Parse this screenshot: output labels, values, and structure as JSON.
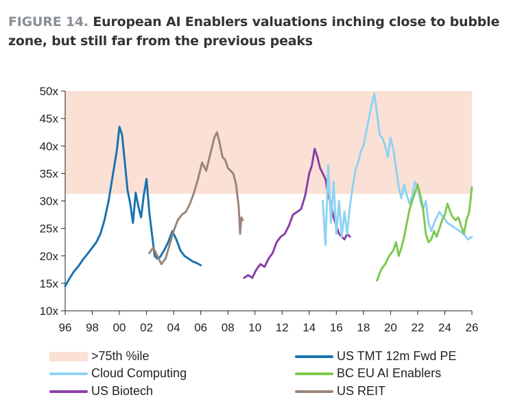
{
  "title": {
    "figure_label": "FIGURE 14.",
    "text": "European AI Enablers valuations inching close to bubble zone, but still far from the previous peaks"
  },
  "colors": {
    "zone": "#fbe0d6",
    "us_tmt": "#1a73b0",
    "cloud": "#8fd3f4",
    "bc_eu_ai": "#7ec850",
    "biotech": "#8a3fa8",
    "reit": "#9b857a",
    "axis": "#222222"
  },
  "chart_data": {
    "type": "line",
    "title": "European AI Enablers valuations inching close to bubble zone, but still far from the previous peaks",
    "xlabel": "",
    "ylabel": "",
    "xlim": [
      1996,
      2026
    ],
    "ylim": [
      10,
      50
    ],
    "x_ticks": [
      1996,
      1998,
      2000,
      2002,
      2004,
      2006,
      2008,
      2010,
      2012,
      2014,
      2016,
      2018,
      2020,
      2022,
      2024,
      2026
    ],
    "x_tick_labels": [
      "96",
      "98",
      "00",
      "02",
      "04",
      "06",
      "08",
      "10",
      "12",
      "14",
      "16",
      "18",
      "20",
      "22",
      "24",
      "26"
    ],
    "y_ticks": [
      10,
      15,
      20,
      25,
      30,
      35,
      40,
      45,
      50
    ],
    "y_tick_labels": [
      "10x",
      "15x",
      "20x",
      "25x",
      "30x",
      "35x",
      "40x",
      "45x",
      "50x"
    ],
    "zone": {
      "name": ">75th %ile",
      "y_from": 31.3,
      "y_to": 50
    },
    "series": [
      {
        "name": "US TMT 12m Fwd PE",
        "color_key": "us_tmt",
        "x": [
          1996.0,
          1996.3,
          1996.6,
          1997.0,
          1997.3,
          1997.6,
          1998.0,
          1998.3,
          1998.6,
          1998.9,
          1999.2,
          1999.5,
          1999.8,
          2000.0,
          2000.2,
          2000.4,
          2000.6,
          2000.8,
          2001.0,
          2001.2,
          2001.4,
          2001.6,
          2001.8,
          2002.0,
          2002.2,
          2002.4,
          2002.6,
          2002.8,
          2003.0,
          2003.3,
          2003.6,
          2003.9,
          2004.2,
          2004.5,
          2004.8,
          2005.1,
          2005.4,
          2005.7,
          2006.0
        ],
        "y": [
          14.5,
          15.8,
          17.0,
          18.2,
          19.3,
          20.2,
          21.5,
          22.5,
          24.0,
          26.5,
          30.0,
          34.5,
          39.0,
          43.5,
          42.0,
          37.0,
          32.0,
          29.5,
          26.0,
          31.5,
          29.0,
          27.0,
          31.0,
          34.0,
          28.0,
          24.0,
          20.0,
          19.5,
          19.8,
          21.0,
          22.5,
          24.5,
          23.0,
          21.0,
          20.0,
          19.5,
          19.0,
          18.7,
          18.3
        ]
      },
      {
        "name": "US REIT",
        "color_key": "reit",
        "x": [
          2002.2,
          2002.5,
          2002.8,
          2003.1,
          2003.4,
          2003.7,
          2004.0,
          2004.3,
          2004.6,
          2004.9,
          2005.2,
          2005.5,
          2005.8,
          2006.1,
          2006.4,
          2006.7,
          2007.0,
          2007.2,
          2007.4,
          2007.6,
          2007.8,
          2008.0,
          2008.2,
          2008.4,
          2008.6,
          2008.8,
          2008.9,
          2009.0,
          2009.1
        ],
        "y": [
          20.5,
          21.5,
          20.0,
          18.5,
          19.5,
          22.0,
          24.5,
          26.5,
          27.5,
          28.0,
          29.5,
          31.5,
          34.0,
          37.0,
          35.5,
          38.5,
          41.5,
          42.5,
          40.5,
          38.0,
          37.5,
          36.0,
          35.5,
          35.0,
          33.0,
          29.0,
          24.0,
          27.0,
          26.5
        ]
      },
      {
        "name": "US Biotech",
        "color_key": "biotech",
        "x": [
          2009.2,
          2009.5,
          2009.8,
          2010.1,
          2010.4,
          2010.7,
          2011.0,
          2011.3,
          2011.6,
          2011.9,
          2012.2,
          2012.5,
          2012.8,
          2013.1,
          2013.4,
          2013.7,
          2014.0,
          2014.2,
          2014.4,
          2014.6,
          2014.8,
          2015.0,
          2015.2,
          2015.4,
          2015.6,
          2015.8,
          2016.0,
          2016.2,
          2016.4,
          2016.6,
          2016.8,
          2017.0
        ],
        "y": [
          16.0,
          16.5,
          16.0,
          17.5,
          18.5,
          18.0,
          19.5,
          20.5,
          22.5,
          23.5,
          24.0,
          25.5,
          27.5,
          28.0,
          28.5,
          31.0,
          35.0,
          36.5,
          39.5,
          38.0,
          36.0,
          35.0,
          34.0,
          31.0,
          29.5,
          27.0,
          25.5,
          24.0,
          23.5,
          23.0,
          24.0,
          23.5
        ]
      },
      {
        "name": "Cloud Computing",
        "color_key": "cloud",
        "x": [
          2015.0,
          2015.2,
          2015.4,
          2015.6,
          2015.8,
          2016.0,
          2016.2,
          2016.4,
          2016.6,
          2016.8,
          2017.0,
          2017.2,
          2017.4,
          2017.6,
          2017.8,
          2018.0,
          2018.2,
          2018.4,
          2018.6,
          2018.8,
          2019.0,
          2019.2,
          2019.4,
          2019.6,
          2019.8,
          2020.0,
          2020.2,
          2020.4,
          2020.6,
          2020.8,
          2021.0,
          2021.2,
          2021.4,
          2021.6,
          2021.8,
          2022.0,
          2022.2,
          2022.4,
          2022.6,
          2022.8,
          2023.0,
          2023.3,
          2023.6,
          2023.9,
          2024.2,
          2024.5,
          2024.8,
          2025.1,
          2025.4,
          2025.7,
          2026.0
        ],
        "y": [
          30.0,
          22.0,
          36.5,
          26.0,
          33.5,
          24.0,
          30.0,
          23.5,
          28.0,
          24.0,
          29.0,
          32.5,
          35.5,
          37.0,
          39.0,
          40.0,
          42.5,
          45.0,
          47.5,
          49.5,
          46.0,
          42.0,
          41.5,
          40.0,
          38.0,
          41.5,
          39.5,
          36.0,
          32.5,
          30.5,
          33.0,
          31.0,
          29.5,
          31.0,
          33.5,
          32.5,
          30.0,
          28.5,
          30.0,
          26.0,
          24.5,
          26.5,
          28.0,
          27.0,
          26.0,
          25.5,
          25.0,
          24.5,
          24.0,
          23.0,
          23.5
        ]
      },
      {
        "name": "BC EU AI Enablers",
        "color_key": "bc_eu_ai",
        "x": [
          2019.0,
          2019.3,
          2019.6,
          2019.9,
          2020.2,
          2020.4,
          2020.6,
          2020.8,
          2021.0,
          2021.2,
          2021.4,
          2021.6,
          2021.8,
          2022.0,
          2022.2,
          2022.4,
          2022.6,
          2022.8,
          2023.0,
          2023.2,
          2023.4,
          2023.6,
          2023.8,
          2024.0,
          2024.2,
          2024.4,
          2024.6,
          2024.8,
          2025.0,
          2025.2,
          2025.4,
          2025.6,
          2025.8,
          2026.0
        ],
        "y": [
          15.5,
          17.5,
          18.5,
          20.0,
          21.0,
          22.5,
          20.0,
          21.5,
          23.5,
          26.0,
          28.5,
          30.0,
          31.5,
          33.0,
          31.0,
          28.5,
          24.0,
          22.5,
          23.0,
          24.5,
          23.5,
          25.0,
          26.5,
          27.5,
          29.5,
          28.0,
          27.0,
          26.5,
          27.0,
          25.5,
          24.0,
          26.5,
          28.0,
          32.5
        ]
      }
    ]
  },
  "legend": {
    "items": [
      {
        "label": ">75th %ile",
        "kind": "area",
        "color_key": "zone"
      },
      {
        "label": "US TMT 12m Fwd PE",
        "kind": "line",
        "color_key": "us_tmt"
      },
      {
        "label": "Cloud Computing",
        "kind": "line",
        "color_key": "cloud"
      },
      {
        "label": "BC EU AI Enablers",
        "kind": "line",
        "color_key": "bc_eu_ai"
      },
      {
        "label": "US Biotech",
        "kind": "line",
        "color_key": "biotech"
      },
      {
        "label": "US REIT",
        "kind": "line",
        "color_key": "reit"
      }
    ]
  }
}
